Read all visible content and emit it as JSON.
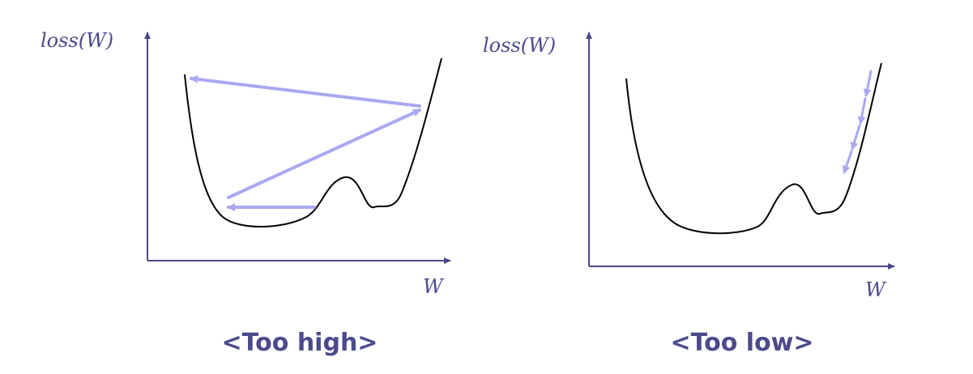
{
  "panels": [
    {
      "ylabel": "loss(W)",
      "xlabel": "W",
      "caption": "<Too high>"
    },
    {
      "ylabel": "loss(W)",
      "xlabel": "W",
      "caption": "<Too low>"
    }
  ],
  "colors": {
    "axis": "#4b4a8c",
    "text": "#4b4a8c",
    "step_arrow": "#aaa8f2",
    "curve": "#000000"
  }
}
